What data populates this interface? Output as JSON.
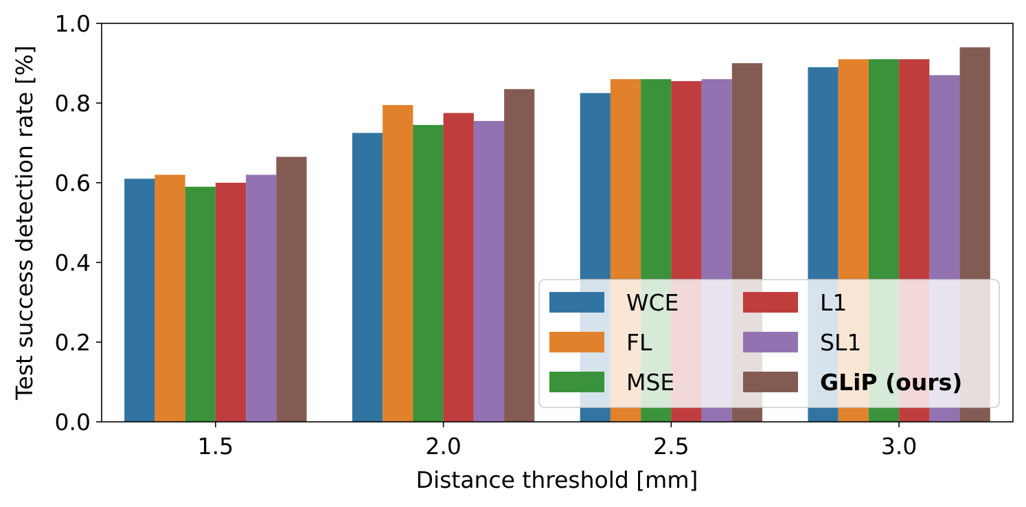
{
  "chart_data": {
    "type": "bar",
    "title": "",
    "xlabel": "Distance threshold [mm]",
    "ylabel": "Test success detection rate [%]",
    "ylim": [
      0,
      1.0
    ],
    "yticks": [
      "0.0",
      "0.2",
      "0.4",
      "0.6",
      "0.8",
      "1.0"
    ],
    "categories": [
      "1.5",
      "2.0",
      "2.5",
      "3.0"
    ],
    "grid": false,
    "legend_position": "bottom-right",
    "series": [
      {
        "name": "WCE",
        "color": "#3274a1",
        "bold": false,
        "values": [
          0.61,
          0.725,
          0.825,
          0.89
        ]
      },
      {
        "name": "FL",
        "color": "#e1812c",
        "bold": false,
        "values": [
          0.62,
          0.795,
          0.86,
          0.91
        ]
      },
      {
        "name": "MSE",
        "color": "#3a923a",
        "bold": false,
        "values": [
          0.59,
          0.745,
          0.86,
          0.91
        ]
      },
      {
        "name": "L1",
        "color": "#c03d3e",
        "bold": false,
        "values": [
          0.6,
          0.775,
          0.855,
          0.91
        ]
      },
      {
        "name": "SL1",
        "color": "#9372b2",
        "bold": false,
        "values": [
          0.62,
          0.755,
          0.86,
          0.87
        ]
      },
      {
        "name": "GLiP (ours)",
        "color": "#845b53",
        "bold": true,
        "values": [
          0.665,
          0.835,
          0.9,
          0.94
        ]
      }
    ]
  }
}
